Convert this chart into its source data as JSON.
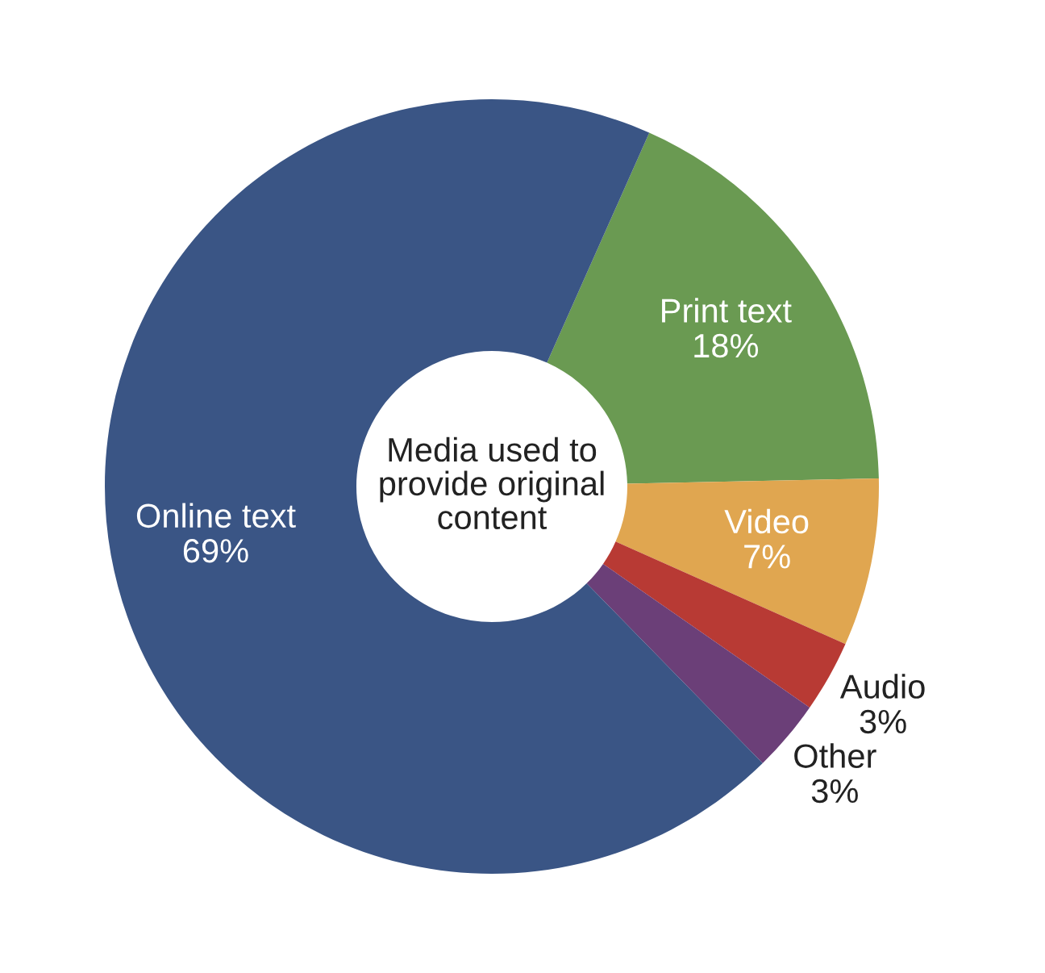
{
  "chart_data": {
    "type": "donut",
    "title": "Media used to\nprovide original\ncontent",
    "categories": [
      "Print text",
      "Video",
      "Audio",
      "Other",
      "Online text"
    ],
    "values": [
      18,
      7,
      3,
      3,
      69
    ],
    "value_labels": [
      "18%",
      "7%",
      "3%",
      "3%",
      "69%"
    ],
    "colors": [
      "#6a9a52",
      "#e0a650",
      "#b83a34",
      "#6b3f78",
      "#3a5585"
    ],
    "legend": false
  }
}
